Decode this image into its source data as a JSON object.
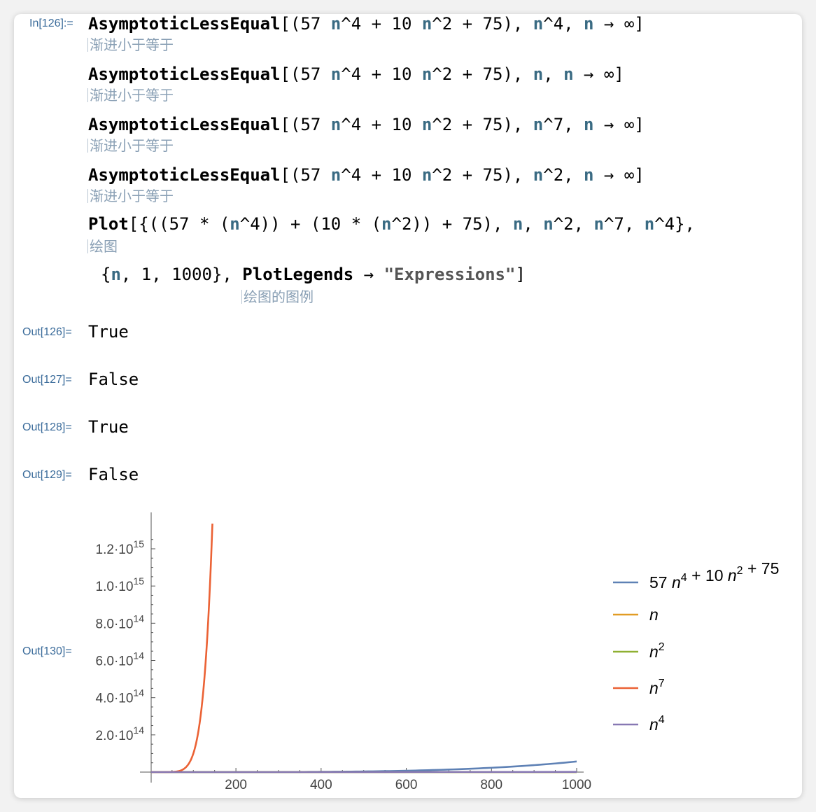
{
  "input": {
    "label": "In[126]:=",
    "lines": [
      {
        "func": "AsymptoticLessEqual",
        "open": "[(57 ",
        "v1": "n",
        "p1": "^4 + 10 ",
        "v2": "n",
        "p2": "^2 + 75), ",
        "v3": "n",
        "p3": "^4, ",
        "v4": "n",
        "p4": " → ∞]",
        "hint": "渐进小于等于"
      },
      {
        "func": "AsymptoticLessEqual",
        "open": "[(57 ",
        "v1": "n",
        "p1": "^4 + 10 ",
        "v2": "n",
        "p2": "^2 + 75), ",
        "v3": "n",
        "p3": ", ",
        "v4": "n",
        "p4": " → ∞]",
        "hint": "渐进小于等于"
      },
      {
        "func": "AsymptoticLessEqual",
        "open": "[(57 ",
        "v1": "n",
        "p1": "^4 + 10 ",
        "v2": "n",
        "p2": "^2 + 75), ",
        "v3": "n",
        "p3": "^7, ",
        "v4": "n",
        "p4": " → ∞]",
        "hint": "渐进小于等于"
      },
      {
        "func": "AsymptoticLessEqual",
        "open": "[(57 ",
        "v1": "n",
        "p1": "^4 + 10 ",
        "v2": "n",
        "p2": "^2 + 75), ",
        "v3": "n",
        "p3": "^2, ",
        "v4": "n",
        "p4": " → ∞]",
        "hint": "渐进小于等于"
      }
    ],
    "plot": {
      "func": "Plot",
      "l1a": "[{((57 * (",
      "v1": "n",
      "l1b": "^4)) + (10 * (",
      "v2": "n",
      "l1c": "^2)) + 75), ",
      "v3": "n",
      "l1d": ", ",
      "v4": "n",
      "l1e": "^2, ",
      "v5": "n",
      "l1f": "^7, ",
      "v6": "n",
      "l1g": "^4},",
      "hint1": "绘图",
      "l2a": "{",
      "v7": "n",
      "l2b": ", 1, 1000}, ",
      "legends_func": "PlotLegends",
      "l2c": " → ",
      "legends_value": "\"Expressions\"",
      "l2d": "]",
      "hint2": "绘图的图例"
    }
  },
  "outputs": [
    {
      "label": "Out[126]=",
      "value": "True"
    },
    {
      "label": "Out[127]=",
      "value": "False"
    },
    {
      "label": "Out[128]=",
      "value": "True"
    },
    {
      "label": "Out[129]=",
      "value": "False"
    }
  ],
  "plot_output_label": "Out[130]=",
  "chart_data": {
    "type": "line",
    "xlim": [
      1,
      1000
    ],
    "ylim": [
      0,
      1300000000000000.0
    ],
    "x_ticks": [
      200,
      400,
      600,
      800,
      1000
    ],
    "y_ticks": [
      {
        "value": 200000000000000.0,
        "mantissa": "2.0",
        "exponent": "14"
      },
      {
        "value": 400000000000000.0,
        "mantissa": "4.0",
        "exponent": "14"
      },
      {
        "value": 600000000000000.0,
        "mantissa": "6.0",
        "exponent": "14"
      },
      {
        "value": 800000000000000.0,
        "mantissa": "8.0",
        "exponent": "14"
      },
      {
        "value": 1000000000000000.0,
        "mantissa": "1.0",
        "exponent": "15"
      },
      {
        "value": 1200000000000000.0,
        "mantissa": "1.2",
        "exponent": "15"
      }
    ],
    "y_tick_base": "10",
    "grid": false,
    "legend_position": "right",
    "series": [
      {
        "name": "57 n^4 + 10 n^2 + 75",
        "color": "#5e81b5",
        "legend_parts": [
          "57 ",
          "n",
          "4",
          " + 10 ",
          "n",
          "2",
          " + 75"
        ],
        "x": [
          1,
          100,
          200,
          300,
          400,
          500,
          600,
          700,
          800,
          900,
          1000
        ],
        "y": [
          142,
          5700000000.0,
          91200000000.0,
          462000000000.0,
          1459000000000.0,
          3562500000000.0,
          7387000000000.0,
          13686000000000.0,
          23347000000000.0,
          37397000000000.0,
          57000000000000.0
        ]
      },
      {
        "name": "n",
        "color": "#e19c24",
        "legend_parts": [
          "n"
        ],
        "x": [
          1,
          1000
        ],
        "y": [
          1,
          1000
        ]
      },
      {
        "name": "n^2",
        "color": "#8fb032",
        "legend_parts": [
          "n",
          "2"
        ],
        "x": [
          1,
          1000
        ],
        "y": [
          1,
          1000000
        ]
      },
      {
        "name": "n^7",
        "color": "#eb6235",
        "legend_parts": [
          "n",
          "7"
        ],
        "x": [
          1,
          40,
          60,
          70,
          80,
          90,
          100,
          110,
          120,
          130,
          140,
          145.5
        ],
        "y": [
          1,
          163840000000.0,
          2799400000000.0,
          8235400000000.0,
          20972000000000.0,
          47830000000000.0,
          100000000000000.0,
          194870000000000.0,
          358320000000000.0,
          627490000000000.0,
          1054100000000000.0,
          1383200000000000.0
        ]
      },
      {
        "name": "n^4",
        "color": "#8778b3",
        "legend_parts": [
          "n",
          "4"
        ],
        "x": [
          1,
          500,
          1000
        ],
        "y": [
          1,
          62500000000.0,
          1000000000000.0
        ]
      }
    ]
  }
}
